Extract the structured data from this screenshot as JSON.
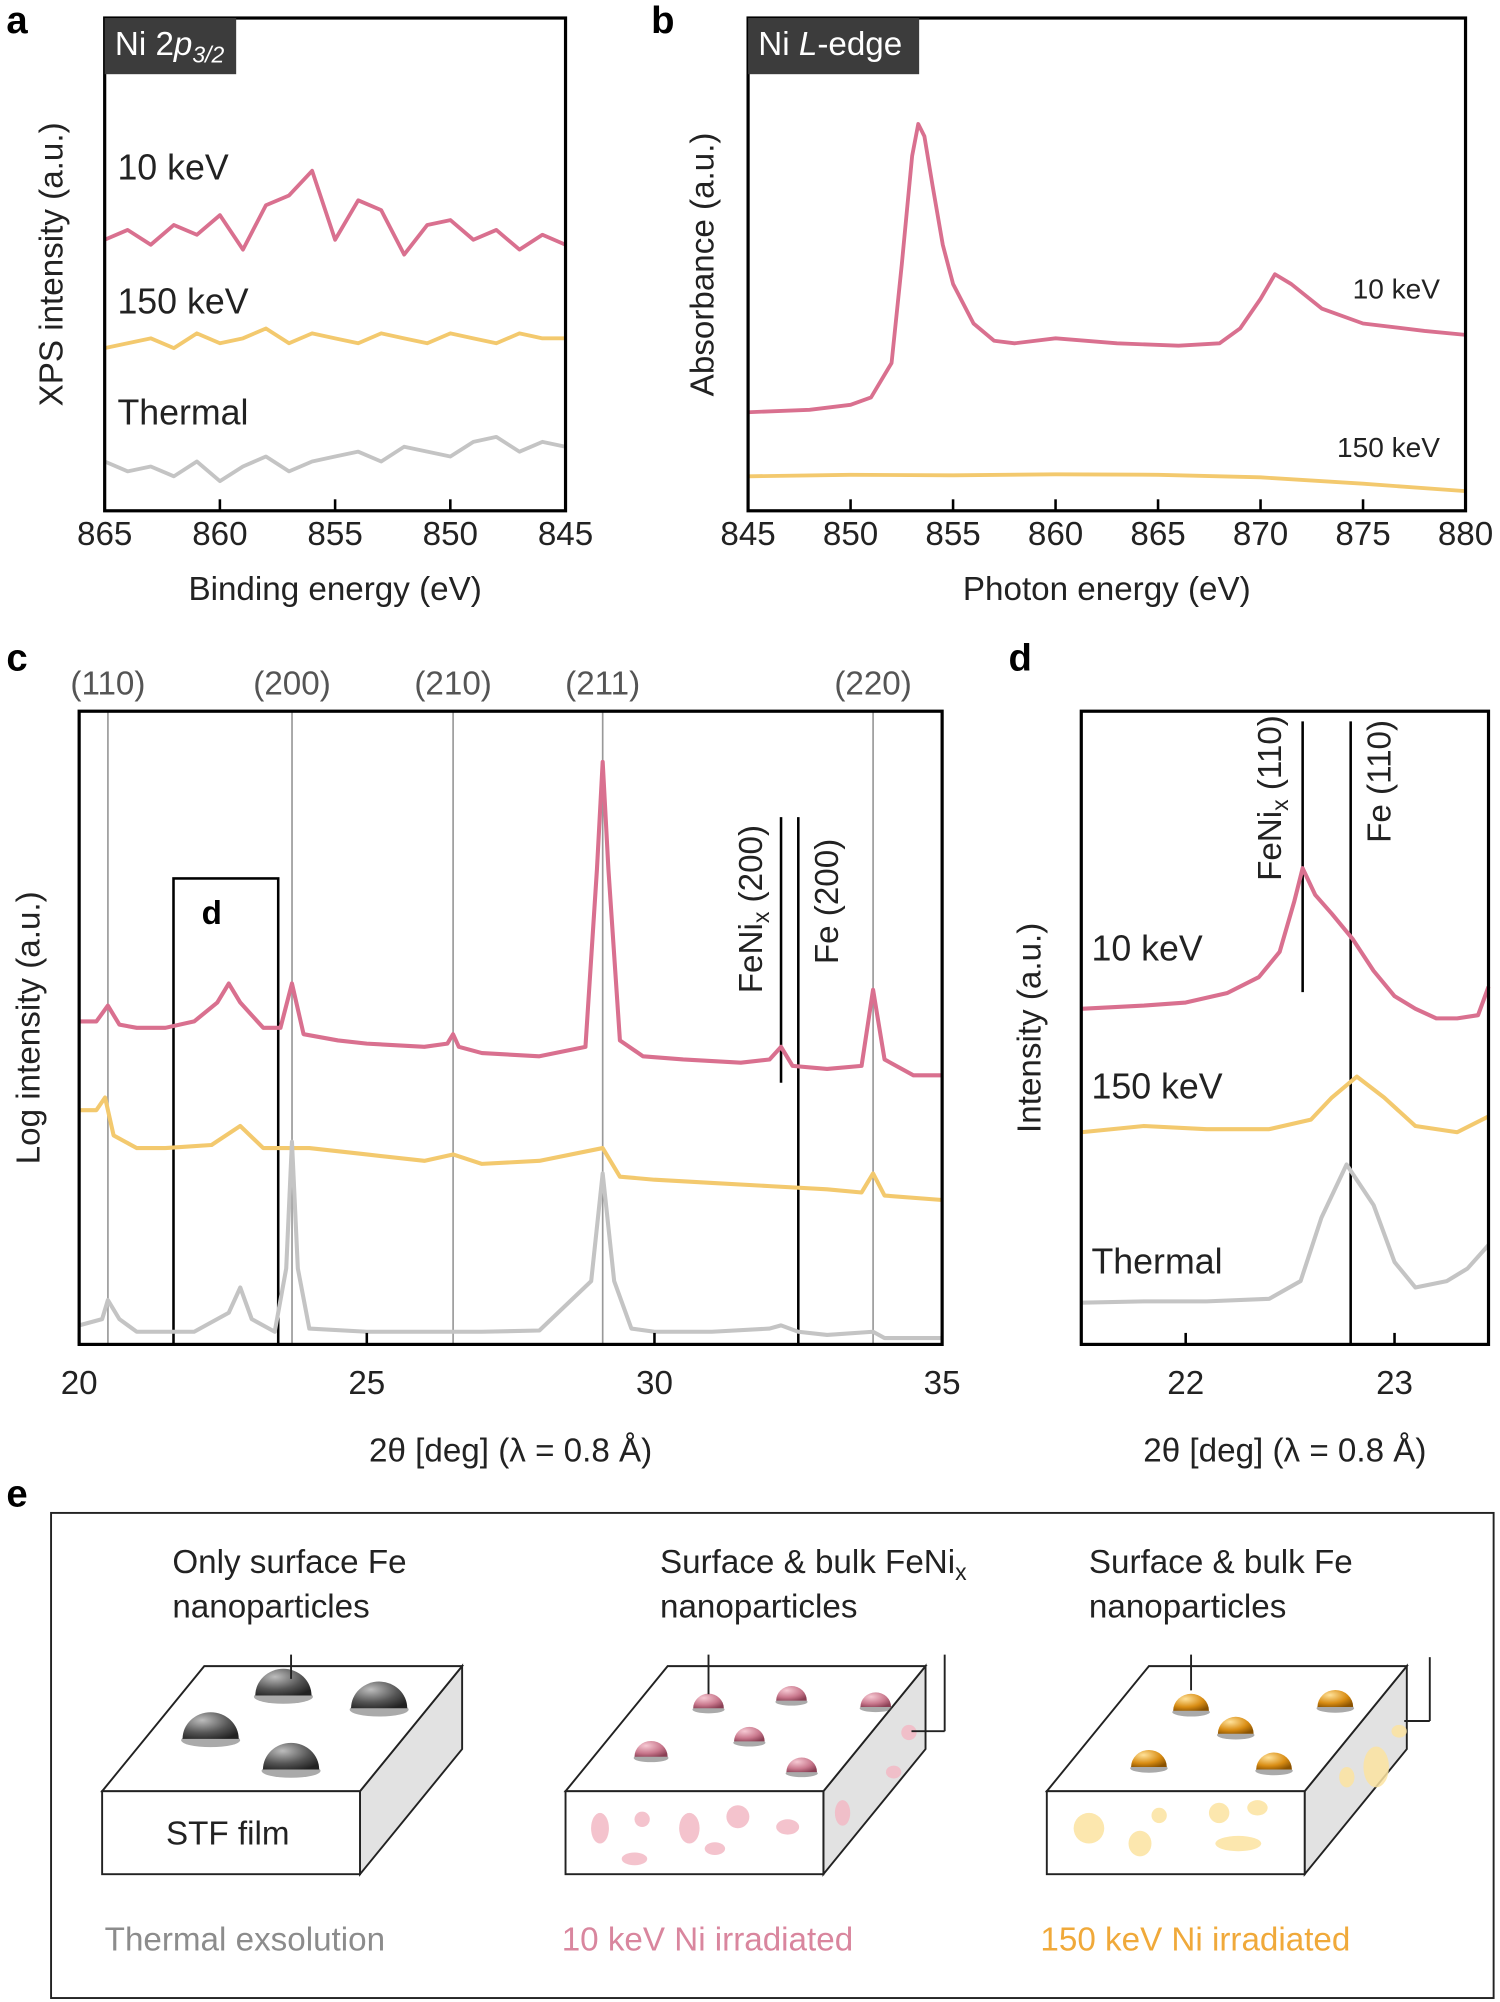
{
  "chart_data": [
    {
      "type": "line",
      "panel_label": "a",
      "title_parts": [
        {
          "text": "Ni 2"
        },
        {
          "text": "p",
          "style": "italic"
        },
        {
          "text": "3/2",
          "style": "italic-sub"
        }
      ],
      "xlabel": "Binding energy (eV)",
      "ylabel": "XPS intensity (a.u.)",
      "xlim": [
        865,
        845
      ],
      "xticks": [
        865,
        860,
        855,
        850,
        845
      ],
      "ylim": [
        0,
        1
      ],
      "series": [
        {
          "name": "10 keV",
          "color": "#d9708f",
          "label_color": "#c9406a",
          "x": [
            865,
            864,
            863,
            862,
            861,
            860,
            859,
            858,
            857,
            856,
            855,
            854,
            853,
            852,
            851,
            850,
            849,
            848,
            847,
            846,
            845
          ],
          "values": [
            0.55,
            0.57,
            0.54,
            0.58,
            0.56,
            0.6,
            0.53,
            0.62,
            0.64,
            0.69,
            0.55,
            0.63,
            0.61,
            0.52,
            0.58,
            0.59,
            0.55,
            0.57,
            0.53,
            0.56,
            0.54
          ]
        },
        {
          "name": "150 keV",
          "color": "#f3c96e",
          "label_color": "#eba32f",
          "x": [
            865,
            864,
            863,
            862,
            861,
            860,
            859,
            858,
            857,
            856,
            855,
            854,
            853,
            852,
            851,
            850,
            849,
            848,
            847,
            846,
            845
          ],
          "values": [
            0.33,
            0.34,
            0.35,
            0.33,
            0.36,
            0.34,
            0.35,
            0.37,
            0.34,
            0.36,
            0.35,
            0.34,
            0.36,
            0.35,
            0.34,
            0.36,
            0.35,
            0.34,
            0.36,
            0.35,
            0.35
          ]
        },
        {
          "name": "Thermal",
          "color": "#c4c4c4",
          "label_color": "#a0a0a0",
          "x": [
            865,
            864,
            863,
            862,
            861,
            860,
            859,
            858,
            857,
            856,
            855,
            854,
            853,
            852,
            851,
            850,
            849,
            848,
            847,
            846,
            845
          ],
          "values": [
            0.1,
            0.08,
            0.09,
            0.07,
            0.1,
            0.06,
            0.09,
            0.11,
            0.08,
            0.1,
            0.11,
            0.12,
            0.1,
            0.13,
            0.12,
            0.11,
            0.14,
            0.15,
            0.12,
            0.14,
            0.13
          ]
        }
      ]
    },
    {
      "type": "line",
      "panel_label": "b",
      "title_parts": [
        {
          "text": "Ni "
        },
        {
          "text": "L",
          "style": "italic"
        },
        {
          "text": "-edge"
        }
      ],
      "xlabel": "Photon energy (eV)",
      "ylabel": "Absorbance (a.u.)",
      "xlim": [
        845,
        880
      ],
      "xticks": [
        845,
        850,
        855,
        860,
        865,
        870,
        875,
        880
      ],
      "ylim": [
        0,
        1
      ],
      "series": [
        {
          "name": "10 keV",
          "color": "#d9708f",
          "label_color": "#c9406a",
          "x": [
            845,
            848,
            850,
            851,
            852,
            852.5,
            853,
            853.3,
            853.6,
            854,
            854.5,
            855,
            856,
            857,
            858,
            860,
            863,
            866,
            868,
            869,
            870,
            870.7,
            871.5,
            873,
            875,
            878,
            880
          ],
          "values": [
            0.2,
            0.205,
            0.215,
            0.23,
            0.3,
            0.5,
            0.72,
            0.785,
            0.76,
            0.66,
            0.54,
            0.46,
            0.38,
            0.345,
            0.34,
            0.35,
            0.34,
            0.335,
            0.34,
            0.37,
            0.43,
            0.48,
            0.46,
            0.41,
            0.38,
            0.365,
            0.357
          ]
        },
        {
          "name": "150 keV",
          "color": "#f3c96e",
          "label_color": "#eba32f",
          "x": [
            845,
            850,
            855,
            860,
            865,
            870,
            875,
            880
          ],
          "values": [
            0.07,
            0.073,
            0.072,
            0.074,
            0.073,
            0.068,
            0.055,
            0.04
          ]
        }
      ]
    },
    {
      "type": "line",
      "panel_label": "c",
      "xlabel": "2θ [deg] (λ = 0.8 Å)",
      "ylabel": "Log intensity (a.u.)",
      "xlim": [
        20,
        35
      ],
      "xticks": [
        20,
        25,
        30,
        35
      ],
      "ylim": [
        0,
        1
      ],
      "ref_lines": [
        {
          "x": 20.5,
          "label": "(110)"
        },
        {
          "x": 23.7,
          "label": "(200)"
        },
        {
          "x": 26.5,
          "label": "(210)"
        },
        {
          "x": 29.1,
          "label": "(211)"
        },
        {
          "x": 33.8,
          "label": "(220)"
        }
      ],
      "marker_lines": [
        {
          "x": 32.2,
          "label_parts": [
            {
              "text": "FeNi"
            },
            {
              "text": "x",
              "style": "sub"
            },
            {
              "text": " (200)"
            }
          ]
        },
        {
          "x": 32.5,
          "label_parts": [
            {
              "text": "Fe (200)"
            }
          ]
        }
      ],
      "inset_box": {
        "label": "d",
        "xlim": [
          21.64,
          23.46
        ]
      },
      "series": [
        {
          "color": "#d9708f",
          "x": [
            20,
            20.3,
            20.5,
            20.7,
            21,
            21.5,
            22,
            22.4,
            22.6,
            22.8,
            23.2,
            23.5,
            23.7,
            23.9,
            24.5,
            25,
            26,
            26.4,
            26.5,
            26.6,
            27,
            28,
            28.8,
            29.0,
            29.1,
            29.2,
            29.4,
            29.8,
            30.5,
            31.5,
            32.0,
            32.2,
            32.4,
            33,
            33.6,
            33.8,
            34.0,
            34.5,
            35
          ],
          "values": [
            0.51,
            0.51,
            0.535,
            0.505,
            0.5,
            0.5,
            0.51,
            0.54,
            0.57,
            0.54,
            0.5,
            0.5,
            0.57,
            0.49,
            0.48,
            0.475,
            0.47,
            0.475,
            0.49,
            0.47,
            0.46,
            0.455,
            0.47,
            0.75,
            0.92,
            0.75,
            0.48,
            0.455,
            0.45,
            0.445,
            0.45,
            0.47,
            0.44,
            0.435,
            0.44,
            0.56,
            0.45,
            0.425,
            0.425
          ]
        },
        {
          "color": "#f3c96e",
          "x": [
            20,
            20.3,
            20.45,
            20.6,
            21,
            21.5,
            22.3,
            22.8,
            23.2,
            23.7,
            24,
            25,
            26,
            26.5,
            27,
            28,
            29.1,
            29.4,
            30,
            31,
            32,
            33,
            33.6,
            33.8,
            34,
            35
          ],
          "values": [
            0.37,
            0.37,
            0.39,
            0.33,
            0.31,
            0.31,
            0.315,
            0.345,
            0.31,
            0.31,
            0.31,
            0.3,
            0.29,
            0.3,
            0.285,
            0.29,
            0.31,
            0.265,
            0.26,
            0.255,
            0.25,
            0.245,
            0.24,
            0.27,
            0.235,
            0.228
          ]
        },
        {
          "color": "#c4c4c4",
          "x": [
            20,
            20.4,
            20.5,
            20.7,
            21,
            22,
            22.6,
            22.8,
            23.0,
            23.4,
            23.6,
            23.7,
            23.8,
            24,
            25,
            26,
            27,
            28,
            28.9,
            29.1,
            29.3,
            29.6,
            30,
            31,
            32,
            32.2,
            32.5,
            33,
            33.8,
            34,
            35
          ],
          "values": [
            0.03,
            0.04,
            0.07,
            0.04,
            0.02,
            0.02,
            0.05,
            0.09,
            0.04,
            0.02,
            0.12,
            0.32,
            0.12,
            0.025,
            0.02,
            0.02,
            0.02,
            0.022,
            0.1,
            0.27,
            0.1,
            0.025,
            0.02,
            0.02,
            0.025,
            0.03,
            0.02,
            0.015,
            0.02,
            0.01,
            0.01
          ]
        }
      ]
    },
    {
      "type": "line",
      "panel_label": "d",
      "xlabel": "2θ [deg] (λ = 0.8 Å)",
      "ylabel": "Intensity (a.u.)",
      "xlim": [
        21.5,
        23.45
      ],
      "xticks": [
        22,
        23
      ],
      "ylim": [
        0,
        1
      ],
      "marker_lines": [
        {
          "x": 22.56,
          "label_parts": [
            {
              "text": "FeNi"
            },
            {
              "text": "x",
              "style": "sub"
            },
            {
              "text": " (110)"
            }
          ]
        },
        {
          "x": 22.79,
          "label_parts": [
            {
              "text": "Fe (110)"
            }
          ]
        }
      ],
      "series": [
        {
          "name": "10 keV",
          "color": "#d9708f",
          "label_color": "#c9406a",
          "x": [
            21.5,
            21.8,
            22.0,
            22.2,
            22.35,
            22.45,
            22.52,
            22.56,
            22.62,
            22.7,
            22.8,
            22.9,
            23.0,
            23.1,
            23.2,
            23.3,
            23.4,
            23.45
          ],
          "values": [
            0.53,
            0.535,
            0.54,
            0.555,
            0.58,
            0.62,
            0.7,
            0.752,
            0.71,
            0.68,
            0.64,
            0.59,
            0.55,
            0.53,
            0.515,
            0.515,
            0.52,
            0.565
          ]
        },
        {
          "name": "150 keV",
          "color": "#f3c96e",
          "label_color": "#eba32f",
          "x": [
            21.5,
            21.8,
            22.1,
            22.4,
            22.6,
            22.7,
            22.82,
            22.95,
            23.1,
            23.3,
            23.45
          ],
          "values": [
            0.335,
            0.345,
            0.34,
            0.34,
            0.355,
            0.39,
            0.423,
            0.39,
            0.345,
            0.335,
            0.36
          ]
        },
        {
          "name": "Thermal",
          "color": "#c4c4c4",
          "label_color": "#a0a0a0",
          "x": [
            21.5,
            21.8,
            22.1,
            22.4,
            22.55,
            22.65,
            22.77,
            22.9,
            23.0,
            23.1,
            23.25,
            23.35,
            23.45
          ],
          "values": [
            0.066,
            0.068,
            0.068,
            0.072,
            0.1,
            0.2,
            0.284,
            0.22,
            0.13,
            0.09,
            0.1,
            0.12,
            0.157
          ]
        }
      ]
    }
  ],
  "diagram": {
    "panel_label": "e",
    "film_label": "STF film",
    "items": [
      {
        "desc_lines": [
          [
            {
              "text": "Only surface Fe"
            }
          ],
          [
            {
              "text": "nanoparticles"
            }
          ]
        ],
        "caption": "Thermal exsolution"
      },
      {
        "desc_lines": [
          [
            {
              "text": "Surface & bulk FeNi"
            },
            {
              "text": "x",
              "style": "sub"
            }
          ],
          [
            {
              "text": "nanoparticles"
            }
          ]
        ],
        "caption": "10 keV Ni irradiated"
      },
      {
        "desc_lines": [
          [
            {
              "text": "Surface & bulk Fe"
            }
          ],
          [
            {
              "text": "nanoparticles"
            }
          ]
        ],
        "caption": "150 keV Ni irradiated"
      }
    ]
  }
}
